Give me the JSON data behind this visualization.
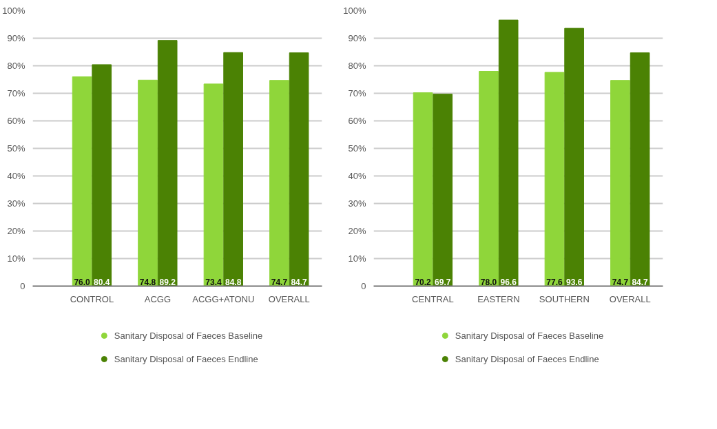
{
  "chart_data": [
    {
      "type": "bar",
      "categories": [
        "CONTROL",
        "ACGG",
        "ACGG+ATONU",
        "OVERALL"
      ],
      "series": [
        {
          "name": "Sanitary Disposal of Faeces Baseline",
          "color": "#8fd63a",
          "values": [
            76.0,
            74.8,
            73.4,
            74.7
          ],
          "value_labels": [
            "76.0",
            "74.8",
            "73.4",
            "74.7"
          ]
        },
        {
          "name": "Sanitary Disposal of Faeces Endline",
          "color": "#4b8204",
          "values": [
            80.4,
            89.2,
            84.8,
            84.7
          ],
          "value_labels": [
            "80.4",
            "89.2",
            "84.8",
            "84.7"
          ]
        }
      ],
      "ylim": [
        0,
        100
      ],
      "yticks": [
        0,
        {
          "value": 10,
          "label": "10%"
        },
        {
          "value": 20,
          "label": "20%"
        },
        {
          "value": 30,
          "label": "30%"
        },
        {
          "value": 40,
          "label": "40%"
        },
        {
          "value": 50,
          "label": "50%"
        },
        {
          "value": 60,
          "label": "60%"
        },
        {
          "value": 70,
          "label": "70%"
        },
        {
          "value": 80,
          "label": "80%"
        },
        {
          "value": 90,
          "label": "90%"
        },
        {
          "value": 100,
          "label": "100%"
        }
      ],
      "grid": "y",
      "legend": "bottom",
      "data_labels": true
    },
    {
      "type": "bar",
      "categories": [
        "CENTRAL",
        "EASTERN",
        "SOUTHERN",
        "OVERALL"
      ],
      "series": [
        {
          "name": "Sanitary Disposal of Faeces Baseline",
          "color": "#8fd63a",
          "values": [
            70.2,
            78.0,
            77.6,
            74.7
          ],
          "value_labels": [
            "70.2",
            "78.0",
            "77.6",
            "74.7"
          ]
        },
        {
          "name": "Sanitary Disposal of Faeces Endline",
          "color": "#4b8204",
          "values": [
            69.7,
            96.6,
            93.6,
            84.7
          ],
          "value_labels": [
            "69.7",
            "96.6",
            "93.6",
            "84.7"
          ]
        }
      ],
      "ylim": [
        0,
        100
      ],
      "yticks": [
        0,
        {
          "value": 10,
          "label": "10%"
        },
        {
          "value": 20,
          "label": "20%"
        },
        {
          "value": 30,
          "label": "30%"
        },
        {
          "value": 40,
          "label": "40%"
        },
        {
          "value": 50,
          "label": "50%"
        },
        {
          "value": 60,
          "label": "60%"
        },
        {
          "value": 70,
          "label": "70%"
        },
        {
          "value": 80,
          "label": "80%"
        },
        {
          "value": 90,
          "label": "90%"
        },
        {
          "value": 100,
          "label": "100%"
        }
      ],
      "grid": "y",
      "legend": "bottom",
      "data_labels": true
    }
  ]
}
